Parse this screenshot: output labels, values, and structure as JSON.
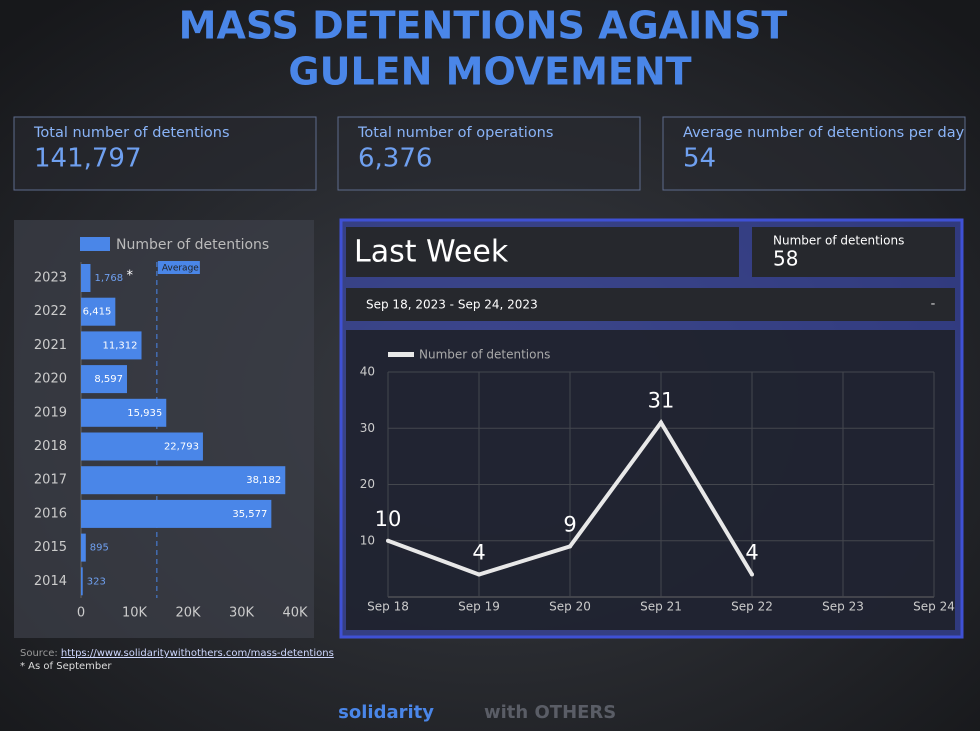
{
  "title_lines": [
    "MASS DETENTIONS AGAINST",
    "GULEN MOVEMENT"
  ],
  "kpis": [
    {
      "label": "Total number of detentions",
      "value": "141,797"
    },
    {
      "label": "Total number of operations",
      "value": "6,376"
    },
    {
      "label": "Average number of detentions per day",
      "value": "54"
    }
  ],
  "panel": {
    "metric_label": "Number of detentions",
    "metric_value": "58",
    "date_range": "Sep 18, 2023 - Sep 24, 2023"
  },
  "chart_data": [
    {
      "type": "hbar",
      "categories": [
        "2023",
        "2022",
        "2021",
        "2020",
        "2019",
        "2018",
        "2017",
        "2016",
        "2015",
        "2014"
      ],
      "series": [
        {
          "name": "Number of detentions",
          "color": "#4a86e8",
          "values": [
            1768,
            6415,
            11312,
            8597,
            15935,
            22793,
            38182,
            35577,
            895,
            323
          ],
          "value_labels": [
            "1,768",
            "6,415",
            "11,312",
            "8,597",
            "15,935",
            "22,793",
            "38,182",
            "35,577",
            "895",
            "323"
          ]
        }
      ],
      "annotation": "*",
      "reference_line": {
        "label": "Average",
        "value": 14180
      },
      "xlim": [
        0,
        40000
      ],
      "xticks": [
        0,
        {
          "value": 10000,
          "label": "10K"
        },
        {
          "value": 20000,
          "label": "20K"
        },
        {
          "value": 30000,
          "label": "30K"
        },
        {
          "value": 40000,
          "label": "40K"
        }
      ]
    },
    {
      "type": "line",
      "title": "Last Week",
      "categories": [
        "Sep 18",
        "Sep 19",
        "Sep 20",
        "Sep 21",
        "Sep 22",
        "Sep 23",
        "Sep 24"
      ],
      "series": [
        {
          "name": "Number of detentions",
          "color": "#e8e8e8",
          "values": [
            10,
            4,
            9,
            31,
            4,
            null,
            null
          ]
        }
      ],
      "ylim": [
        0,
        40
      ],
      "yticks": [
        10,
        20,
        30,
        40
      ],
      "grid": true
    }
  ],
  "footer": {
    "source_prefix": "Source: ",
    "source_url": "https://www.solidaritywithothers.com/mass-detentions",
    "note": "* As of September",
    "brand_a": "solidarity",
    "brand_b": "with OTHERS"
  }
}
